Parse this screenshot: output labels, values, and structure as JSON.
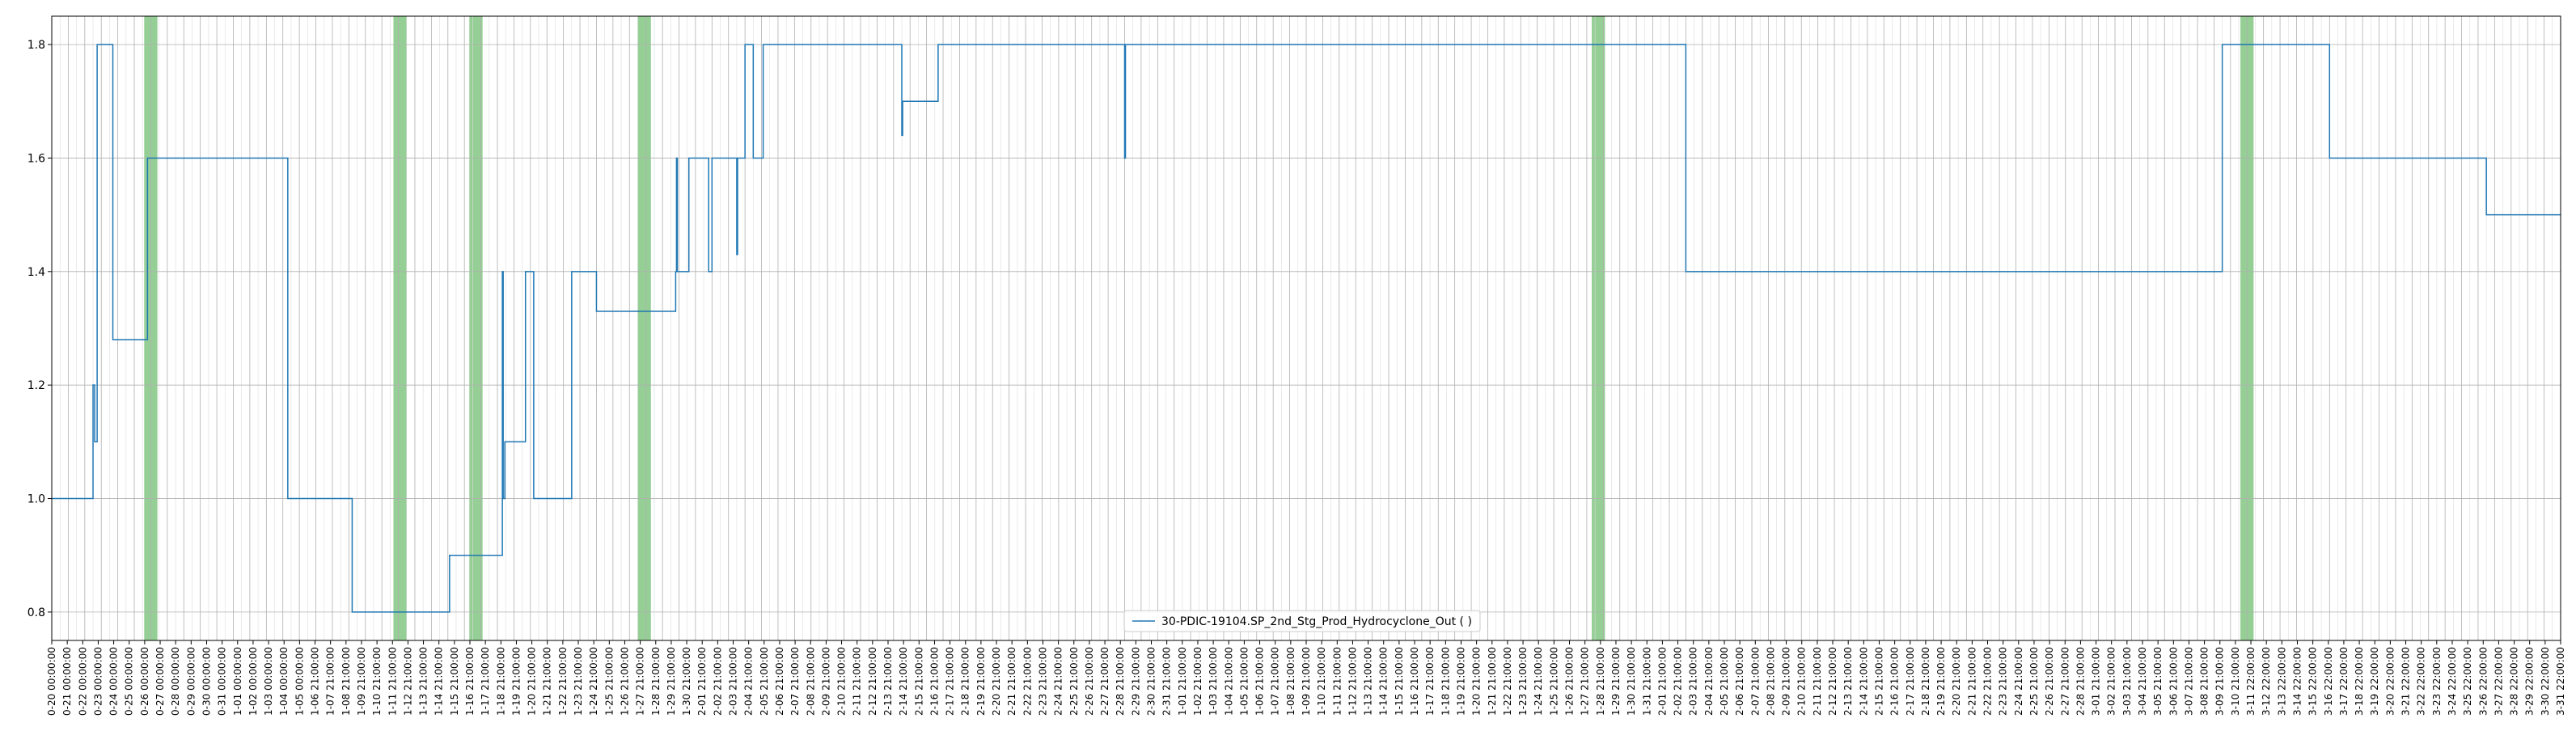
{
  "chart_data": {
    "type": "line",
    "title": "",
    "xlabel": "",
    "ylabel": "",
    "ylim": [
      0.75,
      1.85
    ],
    "yticks": [
      0.8,
      1.0,
      1.2,
      1.4,
      1.6,
      1.8
    ],
    "x_range_days": [
      0,
      152
    ],
    "grid": true,
    "legend": {
      "position": "bottom-center"
    },
    "colors": {
      "line": "#1f77b4",
      "highlight": "#2ca02c",
      "grid": "#b0b0b0"
    },
    "series": [
      {
        "name": "30-PDIC-19104.SP_2nd_Stg_Prod_Hydrocyclone_Out ( )",
        "x": [
          0,
          2.5,
          2.5,
          2.6,
          2.6,
          2.75,
          2.75,
          2.9,
          2.9,
          3.7,
          3.7,
          5.8,
          5.8,
          5.85,
          5.85,
          5.9,
          5.9,
          14.3,
          14.3,
          18.2,
          18.2,
          24.1,
          24.1,
          27.3,
          27.3,
          27.35,
          27.35,
          27.45,
          27.45,
          28.7,
          28.7,
          29.2,
          29.2,
          31.5,
          31.5,
          33.0,
          33.0,
          37.8,
          37.8,
          37.85,
          37.85,
          37.9,
          37.9,
          38.6,
          38.6,
          39.0,
          39.0,
          39.8,
          39.8,
          40.0,
          40.0,
          41.5,
          41.5,
          41.55,
          41.55,
          42.0,
          42.0,
          42.1,
          42.1,
          42.5,
          42.5,
          43.1,
          43.1,
          43.7,
          43.7,
          44.2,
          44.2,
          51.5,
          51.5,
          51.55,
          51.55,
          53.7,
          53.7,
          65.0,
          65.0,
          65.05,
          65.05,
          99.0,
          99.0,
          131.5,
          131.5,
          138.0,
          138.0,
          147.5,
          147.5,
          150.0,
          150.0,
          152.0
        ],
        "y": [
          1.0,
          1.0,
          1.2,
          1.2,
          1.1,
          1.1,
          1.8,
          1.8,
          1.8,
          1.8,
          1.28,
          1.28,
          1.6,
          1.6,
          1.6,
          1.6,
          1.6,
          1.6,
          1.0,
          1.0,
          0.8,
          0.8,
          0.9,
          0.9,
          1.4,
          1.4,
          1.0,
          1.0,
          1.1,
          1.1,
          1.4,
          1.4,
          1.0,
          1.0,
          1.4,
          1.4,
          1.33,
          1.33,
          1.4,
          1.4,
          1.6,
          1.6,
          1.4,
          1.4,
          1.6,
          1.6,
          1.6,
          1.6,
          1.4,
          1.4,
          1.6,
          1.6,
          1.43,
          1.43,
          1.6,
          1.6,
          1.8,
          1.8,
          1.8,
          1.8,
          1.6,
          1.6,
          1.8,
          1.8,
          1.8,
          1.8,
          1.8,
          1.8,
          1.64,
          1.64,
          1.7,
          1.7,
          1.8,
          1.8,
          1.6,
          1.6,
          1.8,
          1.8,
          1.4,
          1.4,
          1.8,
          1.8,
          1.6,
          1.6,
          1.5,
          1.5,
          1.5,
          1.5
        ]
      }
    ],
    "highlights": [
      {
        "start": 5.6,
        "end": 6.4
      },
      {
        "start": 20.7,
        "end": 21.5
      },
      {
        "start": 25.3,
        "end": 26.1
      },
      {
        "start": 35.5,
        "end": 36.3
      },
      {
        "start": 93.3,
        "end": 94.1
      },
      {
        "start": 132.6,
        "end": 133.4
      }
    ],
    "tick_labels": [
      "0-20 00:00:00",
      "0-21 00:00:00",
      "0-22 00:00:00",
      "0-23 00:00:00",
      "0-24 00:00:00",
      "0-25 00:00:00",
      "0-26 00:00:00",
      "0-27 00:00:00",
      "0-28 00:00:00",
      "0-29 00:00:00",
      "0-30 00:00:00",
      "0-31 00:00:00",
      "1-01 00:00:00",
      "1-02 00:00:00",
      "1-03 00:00:00",
      "1-04 00:00:00",
      "1-05 00:00:00",
      "1-06 21:00:00",
      "1-07 21:00:00",
      "1-08 21:00:00",
      "1-09 21:00:00",
      "1-10 21:00:00",
      "1-11 21:00:00",
      "1-12 21:00:00",
      "1-13 21:00:00",
      "1-14 21:00:00",
      "1-15 21:00:00",
      "1-16 21:00:00",
      "1-17 21:00:00",
      "1-18 21:00:00",
      "1-19 21:00:00",
      "1-20 21:00:00",
      "1-21 21:00:00",
      "1-22 21:00:00",
      "1-23 21:00:00",
      "1-24 21:00:00",
      "1-25 21:00:00",
      "1-26 21:00:00",
      "1-27 21:00:00",
      "1-28 21:00:00",
      "1-29 21:00:00",
      "1-30 21:00:00",
      "2-01 21:00:00",
      "2-02 21:00:00",
      "2-03 21:00:00",
      "2-04 21:00:00",
      "2-05 21:00:00",
      "2-06 21:00:00",
      "2-07 21:00:00",
      "2-08 21:00:00",
      "2-09 21:00:00",
      "2-10 21:00:00",
      "2-11 21:00:00",
      "2-12 21:00:00",
      "2-13 21:00:00",
      "2-14 21:00:00",
      "2-15 21:00:00",
      "2-16 21:00:00",
      "2-17 21:00:00",
      "2-18 21:00:00",
      "2-19 21:00:00",
      "2-20 21:00:00",
      "2-21 21:00:00",
      "2-22 21:00:00",
      "2-23 21:00:00",
      "2-24 21:00:00",
      "2-25 21:00:00",
      "2-26 21:00:00",
      "2-27 21:00:00",
      "2-28 21:00:00",
      "2-29 21:00:00",
      "2-30 21:00:00",
      "2-31 21:00:00",
      "1-01 21:00:00",
      "1-02 21:00:00",
      "1-03 21:00:00",
      "1-04 21:00:00",
      "1-05 21:00:00",
      "1-06 21:00:00",
      "1-07 21:00:00",
      "1-08 21:00:00",
      "1-09 21:00:00",
      "1-10 21:00:00",
      "1-11 21:00:00",
      "1-12 21:00:00",
      "1-13 21:00:00",
      "1-14 21:00:00",
      "1-15 21:00:00",
      "1-16 21:00:00",
      "1-17 21:00:00",
      "1-18 21:00:00",
      "1-19 21:00:00",
      "1-20 21:00:00",
      "1-21 21:00:00",
      "1-22 21:00:00",
      "1-23 21:00:00",
      "1-24 21:00:00",
      "1-25 21:00:00",
      "1-26 21:00:00",
      "1-27 21:00:00",
      "1-28 21:00:00",
      "1-29 21:00:00",
      "1-30 21:00:00",
      "1-31 21:00:00",
      "2-01 21:00:00",
      "2-02 21:00:00",
      "2-03 21:00:00",
      "2-04 21:00:00",
      "2-05 21:00:00",
      "2-06 21:00:00",
      "2-07 21:00:00",
      "2-08 21:00:00",
      "2-09 21:00:00",
      "2-10 21:00:00",
      "2-11 21:00:00",
      "2-12 21:00:00",
      "2-13 21:00:00",
      "2-14 21:00:00",
      "2-15 21:00:00",
      "2-16 21:00:00",
      "2-17 21:00:00",
      "2-18 21:00:00",
      "2-19 21:00:00",
      "2-20 21:00:00",
      "2-21 21:00:00",
      "2-22 21:00:00",
      "2-23 21:00:00",
      "2-24 21:00:00",
      "2-25 21:00:00",
      "2-26 21:00:00",
      "2-27 21:00:00",
      "2-28 21:00:00",
      "3-01 21:00:00",
      "3-02 21:00:00",
      "3-03 21:00:00",
      "3-04 21:00:00",
      "3-05 21:00:00",
      "3-06 21:00:00",
      "3-07 21:00:00",
      "3-08 21:00:00",
      "3-09 21:00:00",
      "3-10 21:00:00",
      "3-11 22:00:00",
      "3-12 22:00:00",
      "3-13 22:00:00",
      "3-14 22:00:00",
      "3-15 22:00:00",
      "3-16 22:00:00",
      "3-17 22:00:00",
      "3-18 22:00:00",
      "3-19 22:00:00",
      "3-20 22:00:00",
      "3-21 22:00:00",
      "3-22 22:00:00",
      "3-23 22:00:00",
      "3-24 22:00:00",
      "3-25 22:00:00",
      "3-26 22:00:00",
      "3-27 22:00:00",
      "3-28 22:00:00",
      "3-29 22:00:00",
      "3-30 22:00:00",
      "3-31 22:00:00"
    ]
  }
}
